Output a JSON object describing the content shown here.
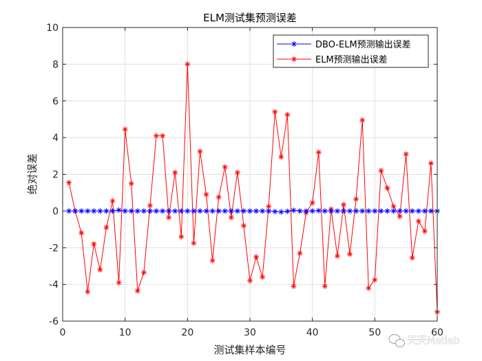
{
  "chart_data": {
    "type": "line",
    "title": "ELM测试集预测误差",
    "xlabel": "测试集样本编号",
    "ylabel": "绝对误差",
    "xlim": [
      0,
      60
    ],
    "ylim": [
      -6,
      10
    ],
    "xticks": [
      0,
      10,
      20,
      30,
      40,
      50,
      60
    ],
    "yticks": [
      -6,
      -4,
      -2,
      0,
      2,
      4,
      6,
      8,
      10
    ],
    "grid": true,
    "legend_position": "top-right",
    "x": [
      1,
      2,
      3,
      4,
      5,
      6,
      7,
      8,
      9,
      10,
      11,
      12,
      13,
      14,
      15,
      16,
      17,
      18,
      19,
      20,
      21,
      22,
      23,
      24,
      25,
      26,
      27,
      28,
      29,
      30,
      31,
      32,
      33,
      34,
      35,
      36,
      37,
      38,
      39,
      40,
      41,
      42,
      43,
      44,
      45,
      46,
      47,
      48,
      49,
      50,
      51,
      52,
      53,
      54,
      55,
      56,
      57,
      58,
      59,
      60
    ],
    "series": [
      {
        "name": "DBO-ELM预测输出误差",
        "color": "#0000ff",
        "marker": "asterisk",
        "values": [
          0,
          0,
          0,
          0,
          0,
          0,
          0,
          0,
          0.05,
          0,
          0,
          0,
          0,
          0,
          0,
          0,
          0,
          0,
          0,
          0,
          0,
          0,
          0,
          0,
          0,
          0,
          0,
          0,
          0,
          0,
          0,
          0,
          0,
          -0.03,
          -0.05,
          -0.02,
          0.04,
          0,
          0,
          0,
          0.02,
          0,
          0,
          0,
          0,
          0,
          0,
          0,
          0,
          0,
          0,
          0,
          0,
          0,
          0,
          0,
          0,
          0,
          0,
          0
        ]
      },
      {
        "name": "ELM预测输出误差",
        "color": "#ff0000",
        "marker": "asterisk",
        "values": [
          1.55,
          0,
          -1.2,
          -4.4,
          -1.8,
          -3.2,
          -0.9,
          0.55,
          -3.9,
          4.45,
          1.5,
          -4.35,
          -3.35,
          0.3,
          4.1,
          4.1,
          -0.35,
          2.1,
          -1.4,
          8.0,
          -1.75,
          3.25,
          0.9,
          -2.7,
          0.75,
          2.4,
          -0.35,
          2.1,
          -0.8,
          -3.8,
          -2.5,
          -3.6,
          0.25,
          5.4,
          2.95,
          5.25,
          -4.1,
          -2.3,
          -0.1,
          0.45,
          3.2,
          -4.1,
          0.1,
          -2.45,
          0.35,
          -2.35,
          0.65,
          4.95,
          -4.2,
          -3.75,
          2.2,
          1.25,
          0.25,
          -0.3,
          3.1,
          -2.55,
          -0.55,
          -1.1,
          2.6,
          -5.5
        ]
      }
    ]
  },
  "watermark": {
    "text": "天天Matlab",
    "icon": "wechat-icon"
  }
}
